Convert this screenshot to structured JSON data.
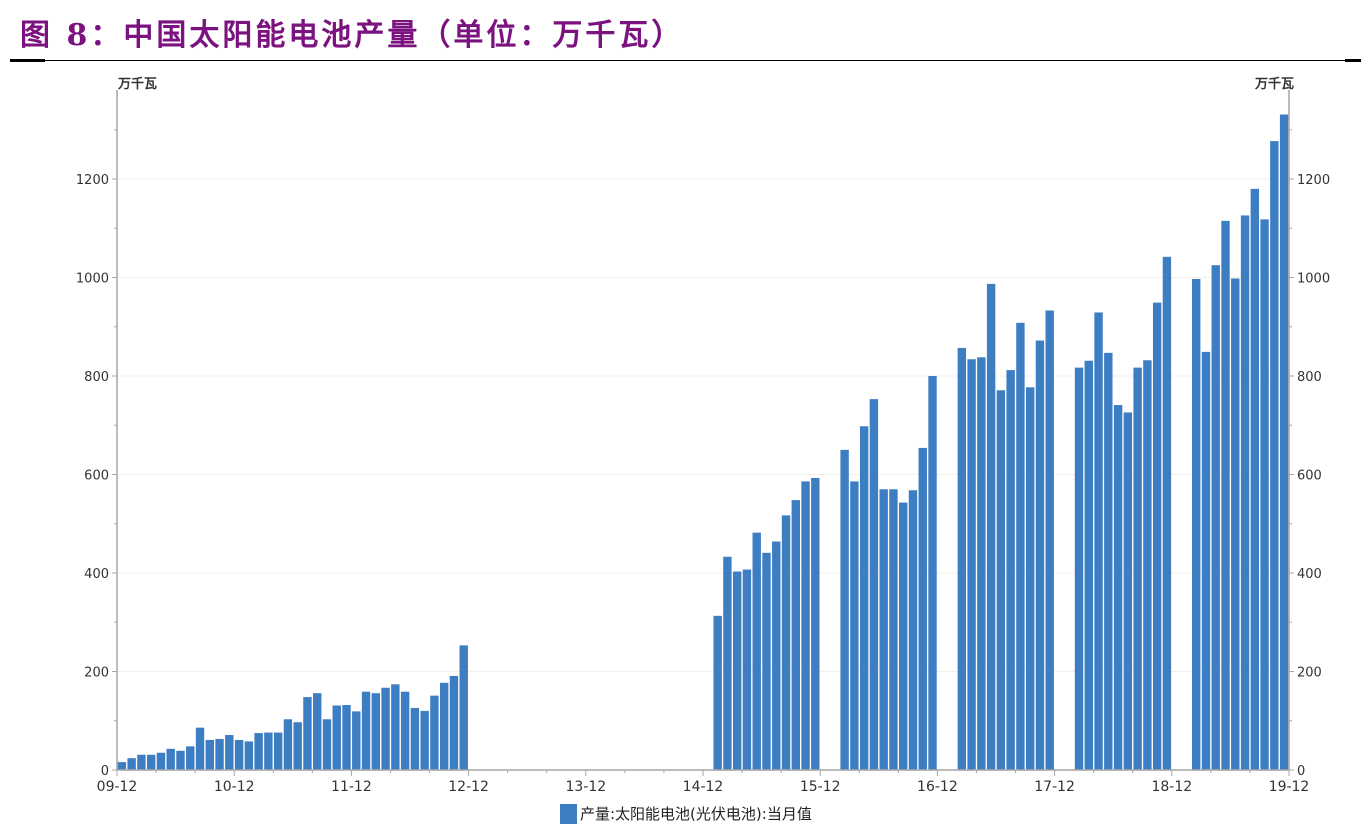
{
  "header": {
    "title": "图 8：中国太阳能电池产量（单位：万千瓦）"
  },
  "colors": {
    "title": "#7b1280",
    "bar": "#3d7ec3",
    "axis": "#a6a6a6",
    "text": "#333333"
  },
  "chart_data": {
    "type": "bar",
    "title": "中国太阳能电池产量（单位：万千瓦）",
    "xlabel": "",
    "ylabel": "万千瓦",
    "ylabel_right": "万千瓦",
    "ylim": [
      0,
      1350
    ],
    "yticks": [
      0,
      200,
      400,
      600,
      800,
      1000,
      1200
    ],
    "xticks": [
      "09-12",
      "10-12",
      "11-12",
      "12-12",
      "13-12",
      "14-12",
      "15-12",
      "16-12",
      "17-12",
      "18-12",
      "19-12"
    ],
    "grid": true,
    "legend_position": "bottom",
    "series": [
      {
        "name": "产量:太阳能电池(光伏电池):当月值",
        "points": [
          {
            "x": "10-01",
            "y": 16
          },
          {
            "x": "10-02",
            "y": 24
          },
          {
            "x": "10-03",
            "y": 31
          },
          {
            "x": "10-04",
            "y": 31
          },
          {
            "x": "10-05",
            "y": 35
          },
          {
            "x": "10-06",
            "y": 43
          },
          {
            "x": "10-07",
            "y": 39
          },
          {
            "x": "10-08",
            "y": 48
          },
          {
            "x": "10-09",
            "y": 86
          },
          {
            "x": "10-10",
            "y": 61
          },
          {
            "x": "10-11",
            "y": 63
          },
          {
            "x": "10-12",
            "y": 71
          },
          {
            "x": "11-01",
            "y": 61
          },
          {
            "x": "11-02",
            "y": 58
          },
          {
            "x": "11-03",
            "y": 75
          },
          {
            "x": "11-04",
            "y": 76
          },
          {
            "x": "11-05",
            "y": 76
          },
          {
            "x": "11-06",
            "y": 103
          },
          {
            "x": "11-07",
            "y": 97
          },
          {
            "x": "11-08",
            "y": 148
          },
          {
            "x": "11-09",
            "y": 156
          },
          {
            "x": "11-10",
            "y": 103
          },
          {
            "x": "11-11",
            "y": 131
          },
          {
            "x": "11-12",
            "y": 132
          },
          {
            "x": "12-01",
            "y": 119
          },
          {
            "x": "12-02",
            "y": 159
          },
          {
            "x": "12-03",
            "y": 156
          },
          {
            "x": "12-04",
            "y": 167
          },
          {
            "x": "12-05",
            "y": 174
          },
          {
            "x": "12-06",
            "y": 159
          },
          {
            "x": "12-07",
            "y": 126
          },
          {
            "x": "12-08",
            "y": 120
          },
          {
            "x": "12-09",
            "y": 151
          },
          {
            "x": "12-10",
            "y": 177
          },
          {
            "x": "12-11",
            "y": 191
          },
          {
            "x": "12-12",
            "y": 253
          },
          {
            "x": "15-02",
            "y": 313
          },
          {
            "x": "15-03",
            "y": 433
          },
          {
            "x": "15-04",
            "y": 403
          },
          {
            "x": "15-05",
            "y": 407
          },
          {
            "x": "15-06",
            "y": 482
          },
          {
            "x": "15-07",
            "y": 441
          },
          {
            "x": "15-08",
            "y": 464
          },
          {
            "x": "15-09",
            "y": 517
          },
          {
            "x": "15-10",
            "y": 548
          },
          {
            "x": "15-11",
            "y": 586
          },
          {
            "x": "15-12",
            "y": 593
          },
          {
            "x": "16-03",
            "y": 650
          },
          {
            "x": "16-04",
            "y": 586
          },
          {
            "x": "16-05",
            "y": 698
          },
          {
            "x": "16-06",
            "y": 753
          },
          {
            "x": "16-07",
            "y": 570
          },
          {
            "x": "16-08",
            "y": 570
          },
          {
            "x": "16-09",
            "y": 543
          },
          {
            "x": "16-10",
            "y": 568
          },
          {
            "x": "16-11",
            "y": 654
          },
          {
            "x": "16-12",
            "y": 800
          },
          {
            "x": "17-03",
            "y": 857
          },
          {
            "x": "17-04",
            "y": 834
          },
          {
            "x": "17-05",
            "y": 838
          },
          {
            "x": "17-06",
            "y": 987
          },
          {
            "x": "17-07",
            "y": 771
          },
          {
            "x": "17-08",
            "y": 812
          },
          {
            "x": "17-09",
            "y": 908
          },
          {
            "x": "17-10",
            "y": 777
          },
          {
            "x": "17-11",
            "y": 872
          },
          {
            "x": "17-12",
            "y": 933
          },
          {
            "x": "18-03",
            "y": 817
          },
          {
            "x": "18-04",
            "y": 831
          },
          {
            "x": "18-05",
            "y": 929
          },
          {
            "x": "18-06",
            "y": 847
          },
          {
            "x": "18-07",
            "y": 741
          },
          {
            "x": "18-08",
            "y": 726
          },
          {
            "x": "18-09",
            "y": 817
          },
          {
            "x": "18-10",
            "y": 832
          },
          {
            "x": "18-11",
            "y": 949
          },
          {
            "x": "18-12",
            "y": 1042
          },
          {
            "x": "19-03",
            "y": 997
          },
          {
            "x": "19-04",
            "y": 849
          },
          {
            "x": "19-05",
            "y": 1025
          },
          {
            "x": "19-06",
            "y": 1115
          },
          {
            "x": "19-07",
            "y": 998
          },
          {
            "x": "19-08",
            "y": 1126
          },
          {
            "x": "19-09",
            "y": 1180
          },
          {
            "x": "19-10",
            "y": 1118
          },
          {
            "x": "19-11",
            "y": 1277
          },
          {
            "x": "19-12",
            "y": 1331
          }
        ]
      }
    ]
  },
  "legend": {
    "label": "产量:太阳能电池(光伏电池):当月值"
  },
  "axis": {
    "left_unit": "万千瓦",
    "right_unit": "万千瓦"
  }
}
